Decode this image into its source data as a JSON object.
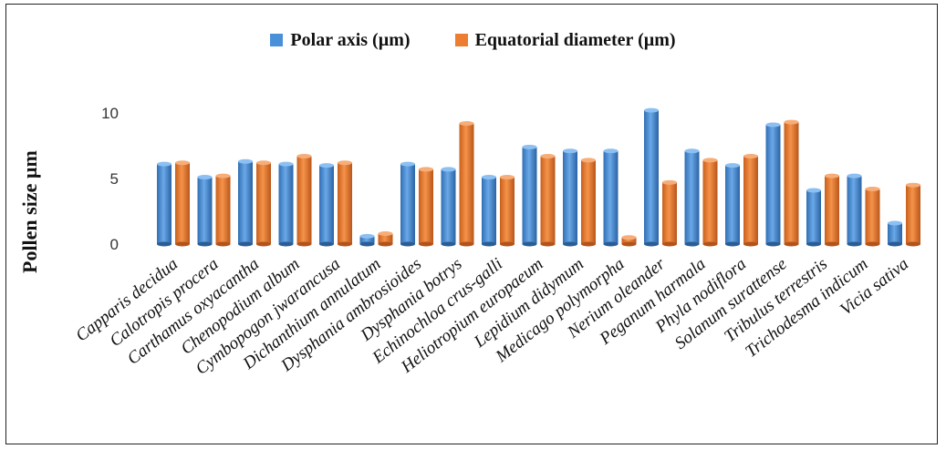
{
  "chart_data": {
    "type": "bar",
    "ylabel": "Pollen size µm",
    "xlabel": "",
    "title": "",
    "ylim": [
      0,
      10.5
    ],
    "yticks": [
      0,
      5,
      10
    ],
    "grid": false,
    "legend_position": "top-center",
    "categories": [
      "Capparis decidua",
      "Calotropis procera",
      "Carthamus oxyacantha",
      "Chenopodium album",
      "Cymbopogon jwarancusa",
      "Dichanthium annulatum",
      "Dysphania ambrosioides",
      "Dysphania botrys",
      "Echinochloa crus-galli",
      "Heliotropium europaeum",
      "Lepidium didymum",
      "Medicago polymorpha",
      "Nerium oleander",
      "Peganum harmala",
      "Phyla nodiflora",
      "Solanum surattense",
      "Tribulus terrestris",
      "Trichodesma indicum",
      "Vicia sativa"
    ],
    "series": [
      {
        "name": "Polar axis (µm)",
        "color": "#4A90D9",
        "values": [
          6.1,
          5.1,
          6.3,
          6.1,
          6.0,
          0.6,
          6.1,
          5.7,
          5.1,
          7.4,
          7.1,
          7.1,
          10.2,
          7.1,
          6.0,
          9.1,
          4.1,
          5.2,
          1.6
        ]
      },
      {
        "name": "Equatorial diameter (µm)",
        "color": "#ED7D31",
        "values": [
          6.2,
          5.2,
          6.2,
          6.7,
          6.2,
          0.8,
          5.7,
          9.2,
          5.1,
          6.7,
          6.4,
          0.5,
          4.7,
          6.4,
          6.7,
          9.3,
          5.2,
          4.2,
          4.5
        ]
      }
    ]
  }
}
